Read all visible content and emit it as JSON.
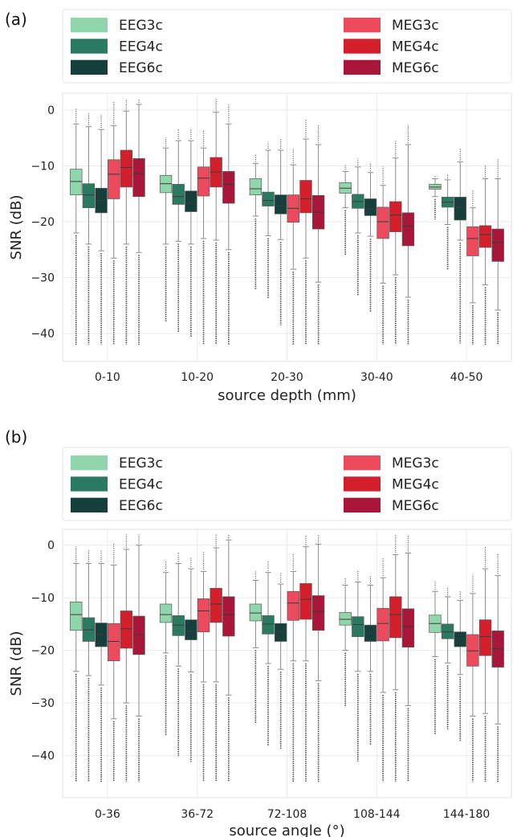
{
  "chart_data": [
    {
      "type": "box",
      "panel_label": "(a)",
      "xlabel": "source depth (mm)",
      "ylabel": "SNR (dB)",
      "ylim": [
        -45,
        3
      ],
      "yticks": [
        0,
        -10,
        -20,
        -30,
        -40
      ],
      "grid": true,
      "legend": "top",
      "categories": [
        "0-10",
        "10-20",
        "20-30",
        "30-40",
        "40-50"
      ],
      "series": [
        {
          "name": "EEG3c",
          "color": "#8fd6ad",
          "boxes": [
            {
              "q1": -15.2,
              "median": -12.8,
              "q3": -10.6,
              "low": -22,
              "high": -2.5
            },
            {
              "q1": -14.8,
              "median": -13.2,
              "q3": -11.7,
              "low": -24,
              "high": -6.8
            },
            {
              "q1": -15.2,
              "median": -14.1,
              "q3": -12.3,
              "low": -19,
              "high": -9.6
            },
            {
              "q1": -14.9,
              "median": -14.0,
              "q3": -13.0,
              "low": -17.5,
              "high": -11.0
            },
            {
              "q1": -14.2,
              "median": -13.8,
              "q3": -13.3,
              "low": -15.5,
              "high": -12.3
            }
          ]
        },
        {
          "name": "EEG4c",
          "color": "#2a7a62",
          "boxes": [
            {
              "q1": -17.5,
              "median": -15.2,
              "q3": -13.2,
              "low": -24,
              "high": -3
            },
            {
              "q1": -16.9,
              "median": -15.5,
              "q3": -13.3,
              "low": -23.5,
              "high": -5.5
            },
            {
              "q1": -17.2,
              "median": -16.2,
              "q3": -14.7,
              "low": -22.5,
              "high": -7.2
            },
            {
              "q1": -17.6,
              "median": -16.4,
              "q3": -15.1,
              "low": -22,
              "high": -10.2
            },
            {
              "q1": -17.4,
              "median": -16.5,
              "q3": -15.6,
              "low": -20.5,
              "high": -12.5
            }
          ]
        },
        {
          "name": "EEG6c",
          "color": "#153f3a",
          "boxes": [
            {
              "q1": -18.4,
              "median": -16.2,
              "q3": -14.0,
              "low": -25.2,
              "high": -3.5
            },
            {
              "q1": -18.2,
              "median": -16.7,
              "q3": -14.5,
              "low": -24,
              "high": -5.5
            },
            {
              "q1": -18.6,
              "median": -17.2,
              "q3": -15.2,
              "low": -23.2,
              "high": -7.2
            },
            {
              "q1": -18.9,
              "median": -17.7,
              "q3": -15.9,
              "low": -22.6,
              "high": -11.2
            },
            {
              "q1": -19.7,
              "median": -17.4,
              "q3": -15.6,
              "low": -23.3,
              "high": -9.3
            }
          ]
        },
        {
          "name": "MEG3c",
          "color": "#ee4a5e",
          "boxes": [
            {
              "q1": -15.9,
              "median": -11.5,
              "q3": -8.9,
              "low": -26.5,
              "high": -2.8
            },
            {
              "q1": -15.4,
              "median": -12.2,
              "q3": -10.2,
              "low": -23,
              "high": -6.8
            },
            {
              "q1": -20.1,
              "median": -17.6,
              "q3": -15.2,
              "low": -28.5,
              "high": -9.8
            },
            {
              "q1": -23.0,
              "median": -20.0,
              "q3": -17.4,
              "low": -31,
              "high": -13.5
            },
            {
              "q1": -26.1,
              "median": -23.0,
              "q3": -20.9,
              "low": -34.5,
              "high": -17.5
            }
          ]
        },
        {
          "name": "MEG4c",
          "color": "#d21f2b",
          "boxes": [
            {
              "q1": -13.8,
              "median": -10.3,
              "q3": -7.2,
              "low": -24,
              "high": -0.2
            },
            {
              "q1": -13.8,
              "median": -11.1,
              "q3": -8.5,
              "low": -23.3,
              "high": -0.4
            },
            {
              "q1": -18.4,
              "median": -15.9,
              "q3": -12.6,
              "low": -26.5,
              "high": -5.2
            },
            {
              "q1": -21.8,
              "median": -18.8,
              "q3": -16.4,
              "low": -29.5,
              "high": -8.6
            },
            {
              "q1": -24.6,
              "median": -22.3,
              "q3": -20.7,
              "low": -31.3,
              "high": -12.3
            }
          ]
        },
        {
          "name": "MEG6c",
          "color": "#a8173a",
          "boxes": [
            {
              "q1": -15.5,
              "median": -11.4,
              "q3": -8.7,
              "low": -25.5,
              "high": 1.0
            },
            {
              "q1": -16.7,
              "median": -13.3,
              "q3": -11.0,
              "low": -25,
              "high": -2.5
            },
            {
              "q1": -21.3,
              "median": -18.3,
              "q3": -15.3,
              "low": -30.8,
              "high": -6.2
            },
            {
              "q1": -24.3,
              "median": -20.8,
              "q3": -18.4,
              "low": -33.5,
              "high": -6.2
            },
            {
              "q1": -27.1,
              "median": -23.7,
              "q3": -21.3,
              "low": -35.8,
              "high": -12.3
            }
          ]
        }
      ]
    },
    {
      "type": "box",
      "panel_label": "(b)",
      "xlabel": "source angle (°)",
      "ylabel": "SNR (dB)",
      "ylim": [
        -48,
        3
      ],
      "yticks": [
        0,
        -10,
        -20,
        -30,
        -40
      ],
      "grid": true,
      "legend": "top",
      "categories": [
        "0-36",
        "36-72",
        "72-108",
        "108-144",
        "144-180"
      ],
      "series": [
        {
          "name": "EEG3c",
          "color": "#8fd6ad",
          "boxes": [
            {
              "q1": -16.2,
              "median": -13.2,
              "q3": -10.8,
              "low": -24,
              "high": -3.5
            },
            {
              "q1": -14.7,
              "median": -13.2,
              "q3": -11.2,
              "low": -20.5,
              "high": -5.2
            },
            {
              "q1": -14.4,
              "median": -12.9,
              "q3": -11.2,
              "low": -19.5,
              "high": -6.7
            },
            {
              "q1": -15.2,
              "median": -14.1,
              "q3": -12.8,
              "low": -20.0,
              "high": -7.6
            },
            {
              "q1": -16.6,
              "median": -14.9,
              "q3": -13.3,
              "low": -21.2,
              "high": -8.8
            }
          ]
        },
        {
          "name": "EEG4c",
          "color": "#2a7a62",
          "boxes": [
            {
              "q1": -18.3,
              "median": -16.1,
              "q3": -13.8,
              "low": -24.8,
              "high": -3.5
            },
            {
              "q1": -17.2,
              "median": -15.2,
              "q3": -13.4,
              "low": -23.0,
              "high": -3.5
            },
            {
              "q1": -16.9,
              "median": -15.0,
              "q3": -13.4,
              "low": -22.5,
              "high": -5.2
            },
            {
              "q1": -17.4,
              "median": -15.1,
              "q3": -13.6,
              "low": -24.0,
              "high": -7.0
            },
            {
              "q1": -17.8,
              "median": -16.5,
              "q3": -15.0,
              "low": -22.4,
              "high": -9.8
            }
          ]
        },
        {
          "name": "EEG6c",
          "color": "#153f3a",
          "boxes": [
            {
              "q1": -19.3,
              "median": -16.9,
              "q3": -14.8,
              "low": -26.6,
              "high": -3.5
            },
            {
              "q1": -18.0,
              "median": -16.3,
              "q3": -14.2,
              "low": -24.1,
              "high": -4.5
            },
            {
              "q1": -18.3,
              "median": -16.5,
              "q3": -14.9,
              "low": -23.6,
              "high": -7.4
            },
            {
              "q1": -18.3,
              "median": -16.8,
              "q3": -15.2,
              "low": -24.0,
              "high": -7.6
            },
            {
              "q1": -19.3,
              "median": -17.8,
              "q3": -16.5,
              "low": -24.6,
              "high": -10.5
            }
          ]
        },
        {
          "name": "MEG3c",
          "color": "#ee4a5e",
          "boxes": [
            {
              "q1": -22.0,
              "median": -18.3,
              "q3": -14.9,
              "low": -33.0,
              "high": -3.8
            },
            {
              "q1": -16.5,
              "median": -12.5,
              "q3": -10.2,
              "low": -26.0,
              "high": -5.0
            },
            {
              "q1": -14.3,
              "median": -11.0,
              "q3": -8.8,
              "low": -22.0,
              "high": -5.0
            },
            {
              "q1": -18.2,
              "median": -14.9,
              "q3": -12.0,
              "low": -28.0,
              "high": -6.2
            },
            {
              "q1": -23.0,
              "median": -20.1,
              "q3": -17.0,
              "low": -32.5,
              "high": -9.2
            }
          ]
        },
        {
          "name": "MEG4c",
          "color": "#d21f2b",
          "boxes": [
            {
              "q1": -19.6,
              "median": -15.9,
              "q3": -12.5,
              "low": -30.0,
              "high": -0.8
            },
            {
              "q1": -14.7,
              "median": -11.2,
              "q3": -8.2,
              "low": -26.0,
              "high": -0.5
            },
            {
              "q1": -14.1,
              "median": -10.3,
              "q3": -7.3,
              "low": -22.0,
              "high": -0.3
            },
            {
              "q1": -17.6,
              "median": -13.2,
              "q3": -9.8,
              "low": -27.5,
              "high": -1.8
            },
            {
              "q1": -21.0,
              "median": -17.4,
              "q3": -14.2,
              "low": -32.0,
              "high": -4.5
            }
          ]
        },
        {
          "name": "MEG6c",
          "color": "#a8173a",
          "boxes": [
            {
              "q1": -20.8,
              "median": -17.0,
              "q3": -13.5,
              "low": -32.5,
              "high": 0.0
            },
            {
              "q1": -17.3,
              "median": -13.2,
              "q3": -9.8,
              "low": -28.5,
              "high": 1.0
            },
            {
              "q1": -16.2,
              "median": -12.6,
              "q3": -9.6,
              "low": -25.8,
              "high": 0.2
            },
            {
              "q1": -19.4,
              "median": -15.5,
              "q3": -12.1,
              "low": -30.5,
              "high": -1.5
            },
            {
              "q1": -23.2,
              "median": -19.7,
              "q3": -16.3,
              "low": -34.0,
              "high": -5.8
            }
          ]
        }
      ]
    }
  ]
}
